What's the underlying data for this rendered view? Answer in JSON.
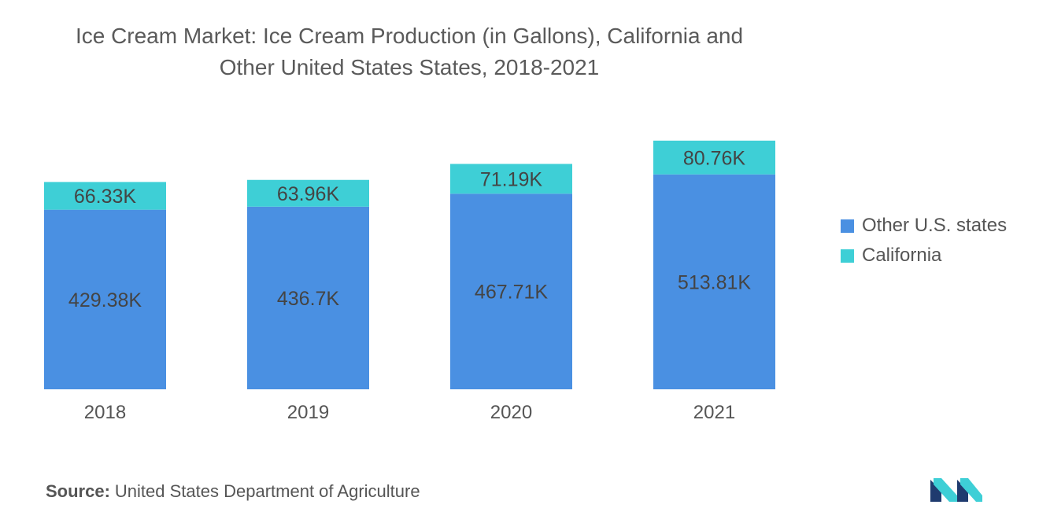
{
  "title": {
    "line1": "Ice Cream Market: Ice Cream Production (in Gallons), California and",
    "line2": "Other United States States, 2018-2021"
  },
  "colors": {
    "other": "#4a90e2",
    "california": "#3ecfd6",
    "text": "#555555"
  },
  "source": {
    "label": "Source:",
    "text": "United States Department of Agriculture"
  },
  "logo": {
    "icon": "mordor-intelligence-logo-icon"
  },
  "chart_data": {
    "type": "bar",
    "stacked": true,
    "categories": [
      "2018",
      "2019",
      "2020",
      "2021"
    ],
    "series": [
      {
        "name": "Other U.S. states",
        "values": [
          429.38,
          436.7,
          467.71,
          513.81
        ],
        "labels": [
          "429.38K",
          "436.7K",
          "467.71K",
          "513.81K"
        ]
      },
      {
        "name": "California",
        "values": [
          66.33,
          63.96,
          71.19,
          80.76
        ],
        "labels": [
          "66.33K",
          "63.96K",
          "71.19K",
          "80.76K"
        ]
      }
    ],
    "legend_position": "right",
    "grid": false,
    "y_axis_visible": false
  }
}
